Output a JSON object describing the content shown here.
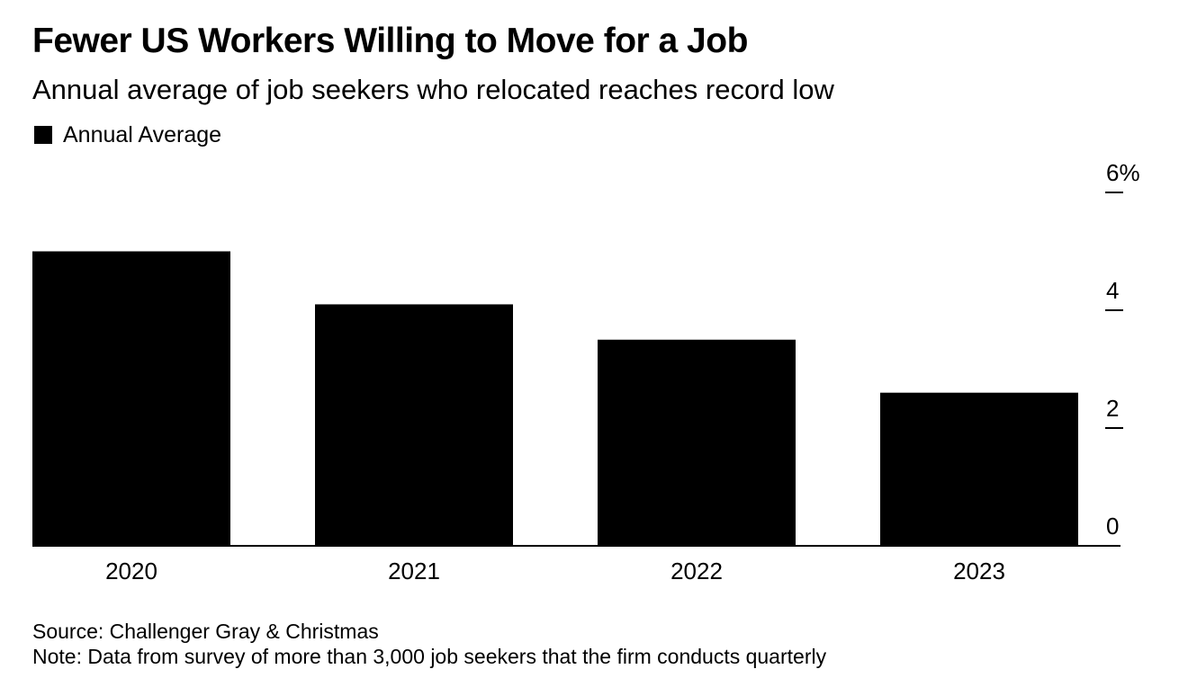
{
  "title": "Fewer US Workers Willing to Move for a Job",
  "subtitle": "Annual average of job seekers who relocated reaches record low",
  "legend": {
    "label": "Annual Average"
  },
  "footer": {
    "source": "Source: Challenger Gray & Christmas",
    "note": "Note: Data from survey of more than 3,000 job seekers that the firm conducts quarterly"
  },
  "colors": {
    "bar": "#000000",
    "axis": "#000000",
    "background": "#ffffff"
  },
  "chart_data": {
    "type": "bar",
    "title": "Fewer US Workers Willing to Move for a Job",
    "subtitle": "Annual average of job seekers who relocated reaches record low",
    "categories": [
      "2020",
      "2021",
      "2022",
      "2023"
    ],
    "series": [
      {
        "name": "Annual Average",
        "values": [
          5.0,
          4.1,
          3.5,
          2.6
        ]
      }
    ],
    "ylim": [
      0,
      6
    ],
    "yticks": [
      0,
      2,
      4,
      6
    ],
    "ytick_labels": [
      "0",
      "2",
      "4",
      "6%"
    ],
    "yaxis_side": "right",
    "xlabel": "",
    "ylabel": "",
    "grid": false,
    "legend_position": "top-left"
  }
}
